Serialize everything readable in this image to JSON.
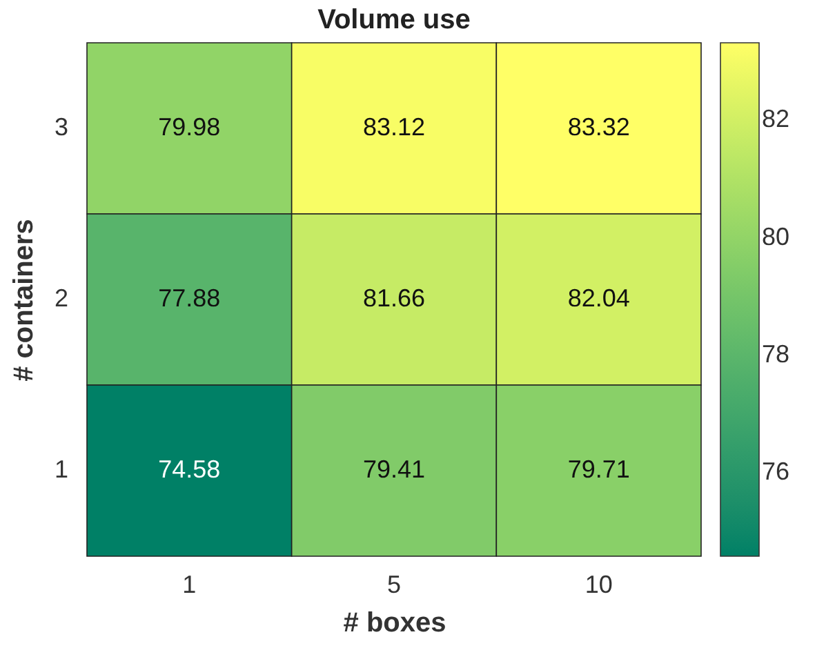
{
  "chart_data": {
    "type": "heatmap",
    "title": "Volume use",
    "xlabel": "# boxes",
    "ylabel": "# containers",
    "categories": [
      "1",
      "5",
      "10"
    ],
    "y_categories": [
      "3",
      "2",
      "1"
    ],
    "cells": [
      [
        79.98,
        83.12,
        83.32
      ],
      [
        77.88,
        81.66,
        82.04
      ],
      [
        74.58,
        79.41,
        79.71
      ]
    ],
    "clim": [
      74.58,
      83.32
    ],
    "cticks": [
      76,
      78,
      80,
      82
    ],
    "colors": [
      "#008066",
      "#ffff66"
    ],
    "data_labels": true
  }
}
